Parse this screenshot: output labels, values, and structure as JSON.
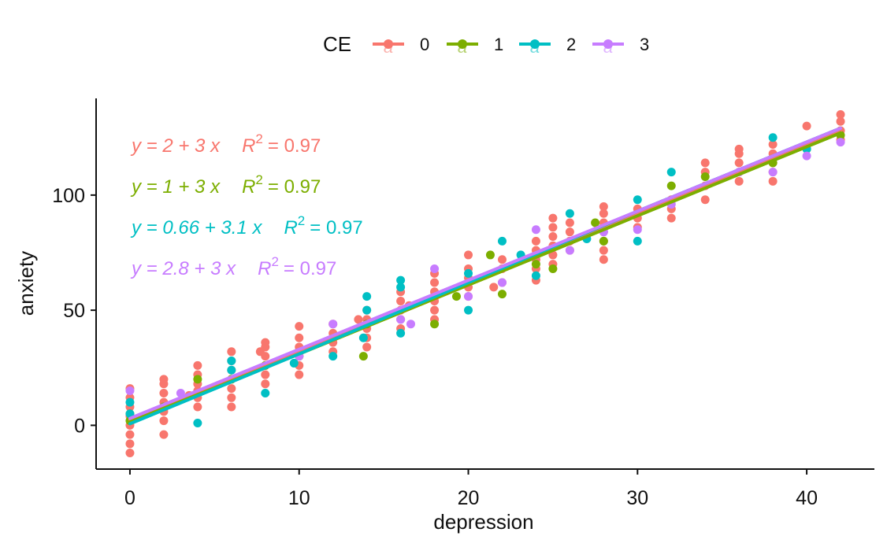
{
  "chart_data": {
    "type": "scatter",
    "xlabel": "depression",
    "ylabel": "anxiety",
    "xlim": [
      -2,
      44
    ],
    "ylim": [
      -19,
      142
    ],
    "x_ticks": [
      0,
      10,
      20,
      30,
      40
    ],
    "y_ticks": [
      0,
      50,
      100
    ],
    "grid": false,
    "legend": {
      "title": "CE",
      "position": "top",
      "glyph": "a",
      "entries": [
        "0",
        "1",
        "2",
        "3"
      ]
    },
    "series": [
      {
        "name": "0",
        "color": "#F8766D",
        "equation": "y = 2 + 3 x",
        "r2_label": "R",
        "r2_sup": "2",
        "r2_value": "= 0.97",
        "fit_line": [
          [
            0,
            2.5
          ],
          [
            10,
            32
          ],
          [
            20,
            62
          ],
          [
            30,
            92
          ],
          [
            42,
            128
          ]
        ],
        "points": [
          [
            0,
            -12
          ],
          [
            0,
            -8
          ],
          [
            0,
            -4
          ],
          [
            0,
            0
          ],
          [
            0,
            4
          ],
          [
            0,
            8
          ],
          [
            0,
            12
          ],
          [
            0,
            16
          ],
          [
            2,
            -4
          ],
          [
            2,
            2
          ],
          [
            2,
            6
          ],
          [
            2,
            10
          ],
          [
            2,
            14
          ],
          [
            2,
            18
          ],
          [
            2,
            20
          ],
          [
            3.5,
            13
          ],
          [
            4,
            8
          ],
          [
            4,
            12
          ],
          [
            4,
            15
          ],
          [
            4,
            18
          ],
          [
            4,
            22
          ],
          [
            4,
            26
          ],
          [
            6,
            8
          ],
          [
            6,
            12
          ],
          [
            6,
            16
          ],
          [
            6,
            20
          ],
          [
            6,
            24
          ],
          [
            6,
            28
          ],
          [
            6,
            32
          ],
          [
            7.7,
            32
          ],
          [
            8,
            18
          ],
          [
            8,
            22
          ],
          [
            8,
            26
          ],
          [
            8,
            30
          ],
          [
            8,
            34
          ],
          [
            8,
            36
          ],
          [
            10,
            22
          ],
          [
            10,
            26
          ],
          [
            10,
            30
          ],
          [
            10,
            34
          ],
          [
            10,
            38
          ],
          [
            10,
            43
          ],
          [
            12,
            32
          ],
          [
            12,
            36
          ],
          [
            12,
            40
          ],
          [
            12,
            44
          ],
          [
            13.5,
            46
          ],
          [
            14,
            34
          ],
          [
            14,
            38
          ],
          [
            14,
            42
          ],
          [
            14,
            46
          ],
          [
            14,
            50
          ],
          [
            16,
            42
          ],
          [
            16,
            46
          ],
          [
            16,
            50
          ],
          [
            16,
            54
          ],
          [
            16,
            58
          ],
          [
            16.5,
            52
          ],
          [
            18,
            46
          ],
          [
            18,
            50
          ],
          [
            18,
            54
          ],
          [
            18,
            58
          ],
          [
            18,
            62
          ],
          [
            18,
            66
          ],
          [
            20,
            56
          ],
          [
            20,
            60
          ],
          [
            20,
            64
          ],
          [
            20,
            68
          ],
          [
            20,
            74
          ],
          [
            21.5,
            60
          ],
          [
            22,
            62
          ],
          [
            22,
            68
          ],
          [
            22,
            72
          ],
          [
            24,
            63
          ],
          [
            24,
            68
          ],
          [
            24,
            72
          ],
          [
            24,
            76
          ],
          [
            24,
            80
          ],
          [
            25,
            70
          ],
          [
            25,
            74
          ],
          [
            25,
            78
          ],
          [
            25,
            82
          ],
          [
            25,
            86
          ],
          [
            25,
            90
          ],
          [
            26,
            76
          ],
          [
            26,
            80
          ],
          [
            26,
            84
          ],
          [
            26,
            88
          ],
          [
            28,
            72
          ],
          [
            28,
            76
          ],
          [
            28,
            80
          ],
          [
            28,
            84
          ],
          [
            28,
            88
          ],
          [
            28,
            92
          ],
          [
            28,
            95
          ],
          [
            30,
            86
          ],
          [
            30,
            90
          ],
          [
            30,
            94
          ],
          [
            32,
            90
          ],
          [
            32,
            94
          ],
          [
            32,
            98
          ],
          [
            34,
            98
          ],
          [
            34,
            104
          ],
          [
            34,
            110
          ],
          [
            34,
            114
          ],
          [
            36,
            106
          ],
          [
            36,
            110
          ],
          [
            36,
            114
          ],
          [
            36,
            118
          ],
          [
            36,
            120
          ],
          [
            38,
            106
          ],
          [
            38,
            110
          ],
          [
            38,
            114
          ],
          [
            38,
            118
          ],
          [
            38,
            122
          ],
          [
            40,
            130
          ],
          [
            42,
            124
          ],
          [
            42,
            128
          ],
          [
            42,
            132
          ],
          [
            42,
            135
          ]
        ]
      },
      {
        "name": "1",
        "color": "#7CAE00",
        "equation": "y = 1 + 3 x",
        "r2_label": "R",
        "r2_sup": "2",
        "r2_value": "= 0.97",
        "fit_line": [
          [
            0,
            1.5
          ],
          [
            10,
            31
          ],
          [
            20,
            61
          ],
          [
            30,
            91
          ],
          [
            42,
            127
          ]
        ],
        "points": [
          [
            0,
            2
          ],
          [
            0,
            5
          ],
          [
            2,
            8
          ],
          [
            4,
            20
          ],
          [
            6,
            20
          ],
          [
            8,
            26
          ],
          [
            10,
            30
          ],
          [
            13.8,
            30
          ],
          [
            14,
            44
          ],
          [
            18,
            44
          ],
          [
            19.3,
            56
          ],
          [
            21.3,
            74
          ],
          [
            22,
            57
          ],
          [
            24,
            70
          ],
          [
            25,
            68
          ],
          [
            27.5,
            88
          ],
          [
            28,
            80
          ],
          [
            32,
            104
          ],
          [
            34,
            108
          ],
          [
            38,
            114
          ],
          [
            40,
            120
          ],
          [
            42,
            126
          ]
        ]
      },
      {
        "name": "2",
        "color": "#00BFC4",
        "equation": "y = 0.66 + 3.1 x",
        "r2_label": "R",
        "r2_sup": "2",
        "r2_value": "= 0.97",
        "fit_line": [
          [
            0,
            0.7
          ],
          [
            10,
            31
          ],
          [
            20,
            62
          ],
          [
            30,
            93
          ],
          [
            42,
            129
          ]
        ],
        "points": [
          [
            0,
            5
          ],
          [
            0,
            10
          ],
          [
            4,
            1
          ],
          [
            6,
            24
          ],
          [
            6,
            28
          ],
          [
            8,
            14
          ],
          [
            9.7,
            27
          ],
          [
            12,
            30
          ],
          [
            13.8,
            38
          ],
          [
            14,
            50
          ],
          [
            14,
            56
          ],
          [
            16,
            40
          ],
          [
            16,
            60
          ],
          [
            16,
            63
          ],
          [
            20,
            50
          ],
          [
            20,
            66
          ],
          [
            22,
            80
          ],
          [
            23.1,
            74
          ],
          [
            24,
            65
          ],
          [
            26,
            92
          ],
          [
            27,
            81
          ],
          [
            30,
            80
          ],
          [
            30,
            98
          ],
          [
            32,
            110
          ],
          [
            38,
            125
          ],
          [
            40,
            120
          ]
        ]
      },
      {
        "name": "3",
        "color": "#C77CFF",
        "equation": "y = 2.8 + 3 x",
        "r2_label": "R",
        "r2_sup": "2",
        "r2_value": "= 0.97",
        "fit_line": [
          [
            0,
            3
          ],
          [
            10,
            33
          ],
          [
            20,
            63
          ],
          [
            30,
            93
          ],
          [
            42,
            129
          ]
        ],
        "points": [
          [
            0,
            15
          ],
          [
            3,
            14
          ],
          [
            10,
            30
          ],
          [
            12,
            44
          ],
          [
            16,
            46
          ],
          [
            16.6,
            44
          ],
          [
            18,
            68
          ],
          [
            20,
            56
          ],
          [
            22,
            62
          ],
          [
            24,
            85
          ],
          [
            26,
            76
          ],
          [
            28,
            84
          ],
          [
            30,
            85
          ],
          [
            32,
            96
          ],
          [
            36,
            110
          ],
          [
            38,
            110
          ],
          [
            40,
            117
          ],
          [
            42,
            123
          ]
        ]
      }
    ]
  }
}
